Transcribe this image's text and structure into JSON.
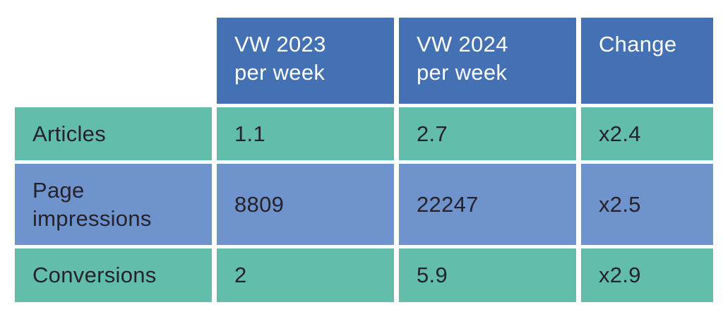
{
  "colors": {
    "header_bg": "#4471b3",
    "row_teal": "#63bdab",
    "row_blue": "#6e93cd",
    "header_text": "#ffffff",
    "body_text": "#26222a",
    "page_bg": "#ffffff"
  },
  "chart_data": {
    "type": "table",
    "title": "",
    "columns": [
      "",
      "VW 2023 per week",
      "VW 2024 per week",
      "Change"
    ],
    "rows": [
      [
        "Articles",
        "1.1",
        "2.7",
        "x2.4"
      ],
      [
        "Page impressions",
        "8809",
        "22247",
        "x2.5"
      ],
      [
        "Conversions",
        "2",
        "5.9",
        "x2.9"
      ]
    ]
  },
  "table": {
    "header": {
      "corner": "",
      "columns": [
        "VW 2023\nper week",
        "VW 2024\nper week",
        "Change"
      ]
    },
    "rows": [
      {
        "label": "Articles",
        "vw2023": "1.1",
        "vw2024": "2.7",
        "change": "x2.4"
      },
      {
        "label": "Page\nimpressions",
        "vw2023": "8809",
        "vw2024": "22247",
        "change": "x2.5"
      },
      {
        "label": "Conversions",
        "vw2023": "2",
        "vw2024": "5.9",
        "change": "x2.9"
      }
    ]
  }
}
